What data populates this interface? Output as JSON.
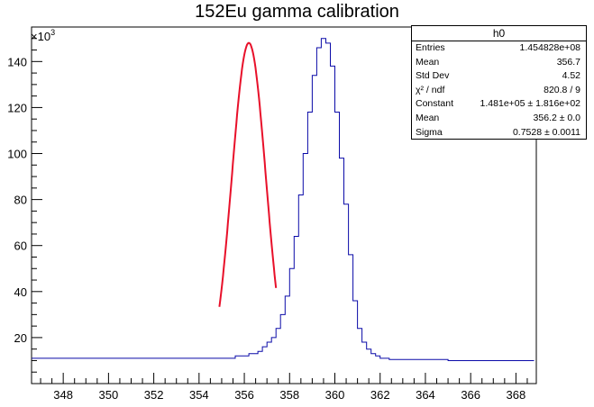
{
  "chart_data": {
    "type": "line",
    "title": "152Eu gamma calibration",
    "xlabel": "",
    "ylabel": "",
    "y_multiplier": "×10",
    "y_multiplier_exp": "3",
    "xlim": [
      346.6,
      368.9
    ],
    "ylim": [
      0,
      155
    ],
    "xticks": [
      348,
      350,
      352,
      354,
      356,
      358,
      360,
      362,
      364,
      366,
      368
    ],
    "yticks": [
      20,
      40,
      60,
      80,
      100,
      120,
      140
    ],
    "grid": false,
    "series": [
      {
        "name": "",
        "style": "histogram",
        "color": "#0a0aa8",
        "bin_width": 0.2,
        "bin_start": 346.6,
        "counts": [
          11,
          11,
          11,
          11,
          11,
          11,
          11,
          11,
          11,
          11,
          11,
          11,
          11,
          11,
          11,
          11,
          11,
          11,
          11,
          11,
          11,
          11,
          11,
          11,
          11,
          11,
          11,
          11,
          11,
          11,
          11,
          11,
          11,
          11,
          11,
          11,
          11,
          11,
          11,
          11,
          11,
          11,
          11,
          11,
          11,
          12,
          12,
          12,
          13,
          13,
          14,
          16,
          18,
          20,
          24,
          30,
          38,
          50,
          64,
          82,
          100,
          118,
          134,
          146,
          150,
          148,
          138,
          118,
          98,
          78,
          56,
          36,
          24,
          18,
          15,
          13,
          12,
          11,
          11,
          10.5,
          10.5,
          10.5,
          10.5,
          10.5,
          10.5,
          10.5,
          10.5,
          10.5,
          10.5,
          10.5,
          10.5,
          10.5,
          10,
          10,
          10,
          10,
          10,
          10,
          10,
          10,
          10,
          10,
          10,
          10,
          10,
          10,
          10,
          10,
          10,
          10,
          10
        ]
      },
      {
        "name": "",
        "style": "fit",
        "color": "#e8102a",
        "function": "gaus",
        "constant": 148.1,
        "mean": 356.2,
        "sigma": 0.7528,
        "range": [
          354.9,
          357.4
        ]
      }
    ],
    "legend": "top-right"
  },
  "stats": {
    "name": "h0",
    "rows": [
      {
        "label": "Entries",
        "value": "1.454828e+08"
      },
      {
        "label": "Mean",
        "value": "356.7"
      },
      {
        "label": "Std Dev",
        "value": "4.52"
      },
      {
        "label": "χ² / ndf",
        "value": "820.8 / 9"
      },
      {
        "label": "Constant",
        "value": "1.481e+05 ± 1.816e+02"
      },
      {
        "label": "Mean",
        "value": "356.2 ± 0.0"
      },
      {
        "label": "Sigma",
        "value": "0.7528 ± 0.0011"
      }
    ]
  }
}
